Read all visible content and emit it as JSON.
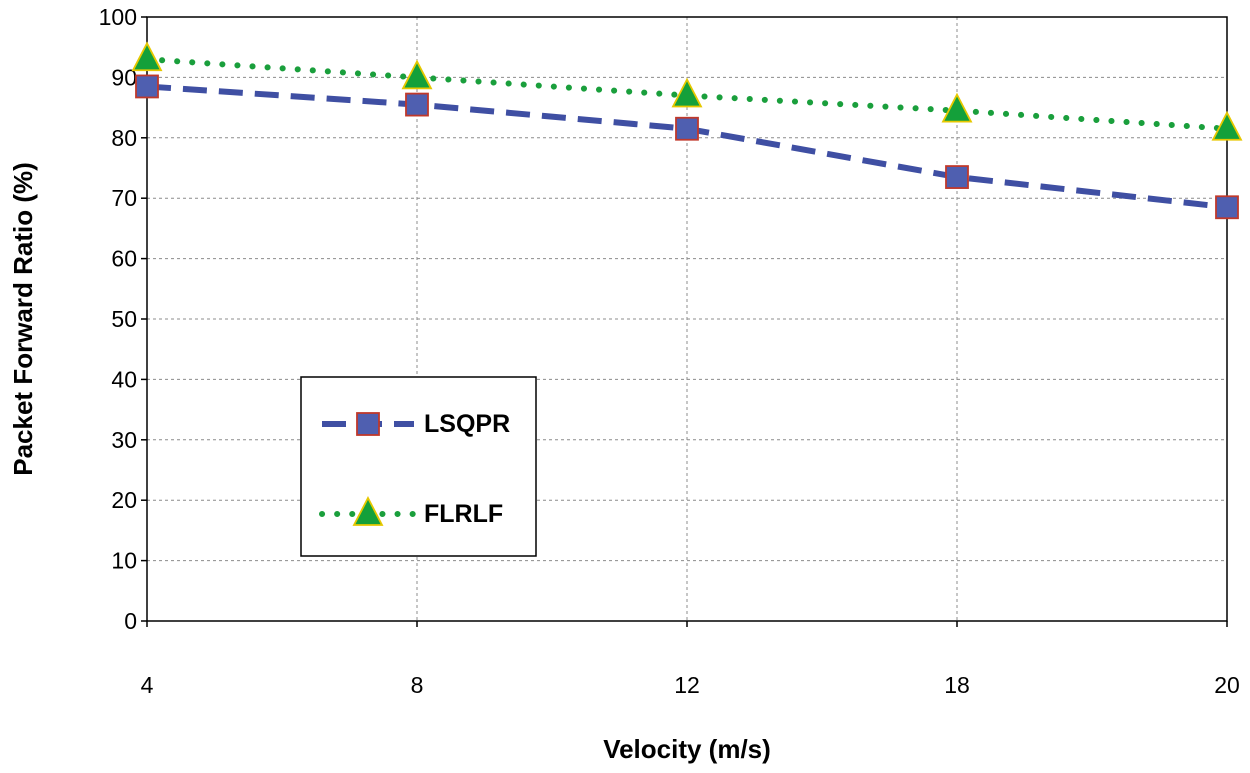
{
  "chart_data": {
    "type": "line",
    "title": "",
    "xlabel": "Velocity (m/s)",
    "ylabel": "Packet Forward Ratio (%)",
    "categories": [
      "4",
      "8",
      "12",
      "18",
      "20"
    ],
    "ylim": [
      0,
      100
    ],
    "yticks": [
      "0",
      "10",
      "20",
      "30",
      "40",
      "50",
      "60",
      "70",
      "80",
      "90",
      "100"
    ],
    "grid": true,
    "legend_position": "lower-left inside plot",
    "series": [
      {
        "name": "LSQPR",
        "values": [
          88.5,
          85.5,
          81.5,
          73.5,
          68.5
        ],
        "line_color": "#3f4fa3",
        "marker": "square",
        "marker_fill": "#4f5fb0",
        "marker_edge": "#c0392b",
        "line_style": "dashed"
      },
      {
        "name": "FLRLF",
        "values": [
          93,
          90,
          87,
          84.5,
          81.5
        ],
        "line_color": "#1a9f3c",
        "marker": "triangle",
        "marker_fill": "#14a03a",
        "marker_edge": "#e6c800",
        "line_style": "dotted"
      }
    ]
  }
}
